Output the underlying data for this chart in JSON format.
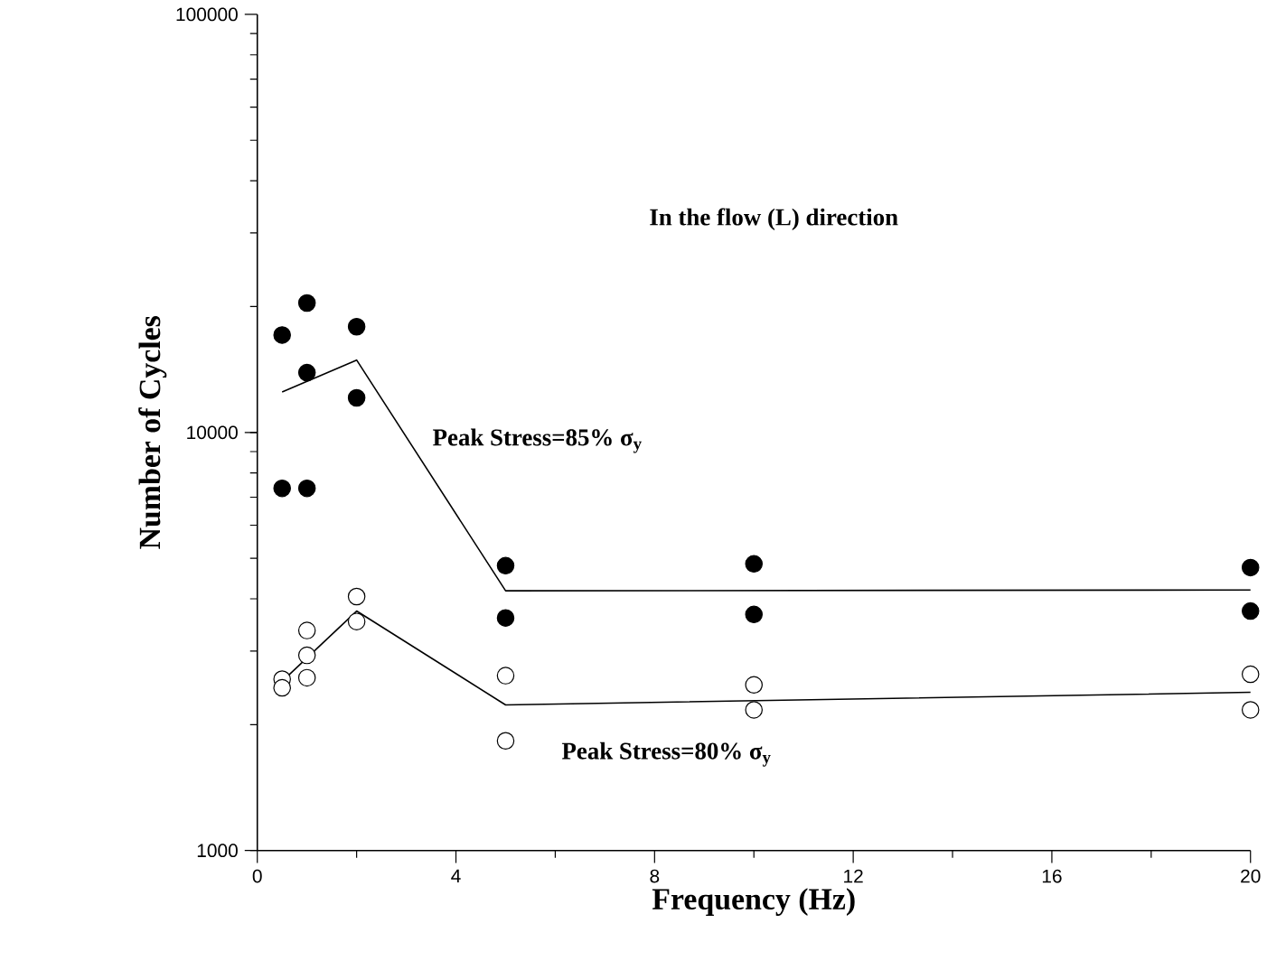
{
  "chart_data": {
    "type": "scatter",
    "xlabel": "Frequency (Hz)",
    "ylabel": "Number of Cycles",
    "log": "y",
    "xlim": [
      0,
      20
    ],
    "ylim": [
      1000,
      100000
    ],
    "xticks": [
      0,
      4,
      8,
      12,
      16,
      20
    ],
    "yticks": [
      1000,
      10000,
      100000
    ],
    "grid": false,
    "annotations": [
      "In the flow (L) direction",
      "Peak Stress=85% σ$_{y}$",
      "Peak Stress=80% σ$_{y}$"
    ],
    "series": [
      {
        "marker": "circle",
        "color": "#000000",
        "x": [
          0.5,
          0.5,
          1,
          1,
          1,
          2,
          2,
          5,
          5,
          10,
          10,
          20,
          20
        ],
        "values": [
          17100,
          7350,
          20400,
          13900,
          7350,
          17900,
          12100,
          4800,
          3600,
          4850,
          3670,
          4750,
          3740
        ]
      },
      {
        "marker": "circle",
        "color": "#ffffff",
        "x": [
          0.5,
          0.5,
          1,
          1,
          1,
          2,
          2,
          5,
          5,
          10,
          10,
          20,
          20
        ],
        "values": [
          2570,
          2450,
          3360,
          2930,
          2590,
          4050,
          3530,
          2620,
          1830,
          2490,
          2170,
          2640,
          2170
        ]
      },
      {
        "type": "line",
        "color": "#000000",
        "x": [
          0.5,
          2,
          5,
          20
        ],
        "values": [
          12500,
          14900,
          4180,
          4200
        ]
      },
      {
        "type": "line",
        "color": "#000000",
        "x": [
          0.5,
          2,
          5,
          20
        ],
        "values": [
          2540,
          3740,
          2230,
          2390
        ]
      }
    ]
  }
}
